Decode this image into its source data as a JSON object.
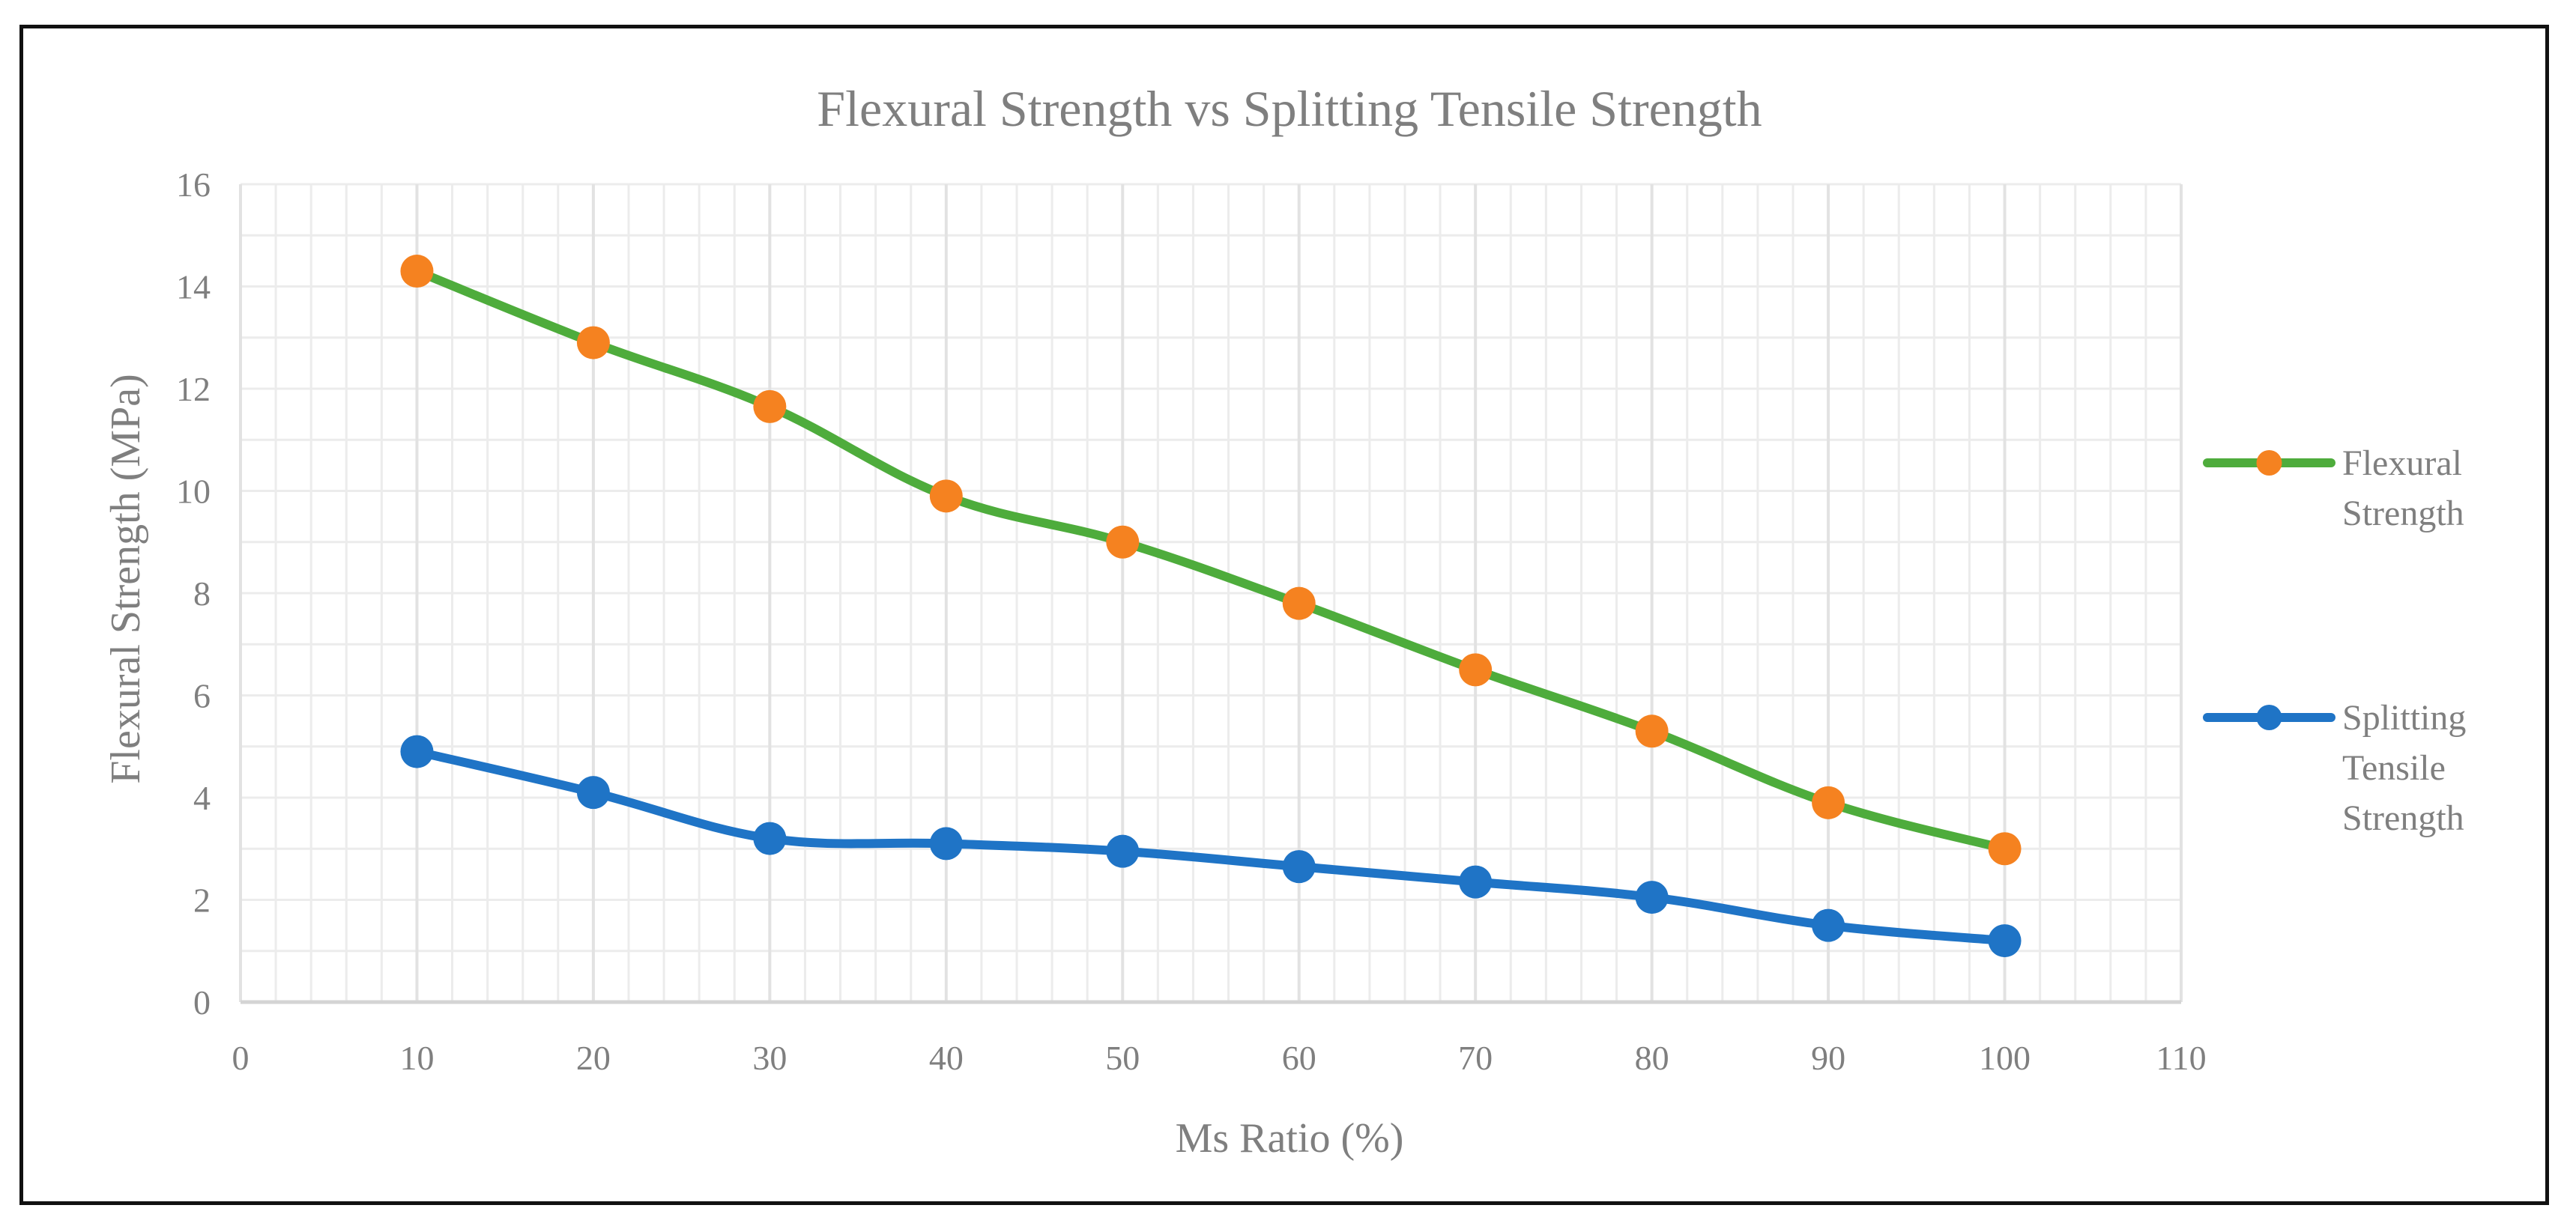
{
  "chart_data": {
    "type": "line",
    "title": "Flexural Strength vs Splitting Tensile Strength",
    "xlabel": "Ms Ratio (%)",
    "ylabel": "Flexural Strength (MPa)",
    "xlim": [
      0,
      110
    ],
    "ylim": [
      0,
      16
    ],
    "x_ticks": [
      "0",
      "10",
      "20",
      "30",
      "40",
      "50",
      "60",
      "70",
      "80",
      "90",
      "100",
      "110"
    ],
    "y_ticks": [
      "0",
      "2",
      "4",
      "6",
      "8",
      "10",
      "12",
      "14",
      "16"
    ],
    "grid": true,
    "legend_position": "right",
    "x": [
      10,
      20,
      30,
      40,
      50,
      60,
      70,
      80,
      90,
      100
    ],
    "series": [
      {
        "name": "Flexural Strength",
        "legend_lines": [
          "Flexural",
          "Strength"
        ],
        "line_color": "#4eac3c",
        "marker_color": "#f58220",
        "values": [
          14.3,
          12.9,
          11.65,
          9.9,
          9.0,
          7.8,
          6.5,
          5.3,
          3.9,
          3.0
        ]
      },
      {
        "name": "Splitting Tensile Strength",
        "legend_lines": [
          "Splitting",
          "Tensile",
          "Strength"
        ],
        "line_color": "#1f74c6",
        "marker_color": "#1f74c6",
        "values": [
          4.9,
          4.1,
          3.2,
          3.1,
          2.95,
          2.65,
          2.35,
          2.05,
          1.5,
          1.2
        ]
      }
    ]
  }
}
